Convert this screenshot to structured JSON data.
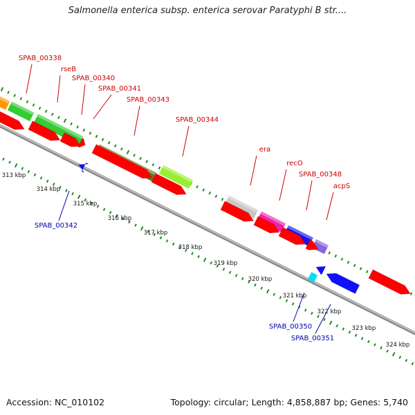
{
  "title": "Salmonella enterica subsp. enterica serovar Paratyphi B str....",
  "footer": {
    "accession": "Accession: NC_010102",
    "topology": "Topology: circular; Length: 4,858,887 bp; Genes: 5,740"
  },
  "colors": {
    "forward_gene": "#ff0000",
    "reverse_gene": "#1010ff",
    "forward_label": "#cc0000",
    "reverse_label": "#0000aa",
    "tick": "#1a8a1a",
    "backbone": "#9a9a9a"
  },
  "kbp_labels": [
    "313 kbp",
    "314 kbp",
    "315 kbp",
    "316 kbp",
    "317 kbp",
    "318 kbp",
    "319 kbp",
    "320 kbp",
    "321 kbp",
    "322 kbp",
    "323 kbp",
    "324 kbp"
  ],
  "forward_labels": [
    "SPAB_00338",
    "rseB",
    "SPAB_00340",
    "SPAB_00341",
    "SPAB_00343",
    "SPAB_00344",
    "era",
    "recO",
    "SPAB_00348",
    "acpS"
  ],
  "reverse_labels": [
    "SPAB_00342",
    "SPAB_00350",
    "SPAB_00351"
  ]
}
